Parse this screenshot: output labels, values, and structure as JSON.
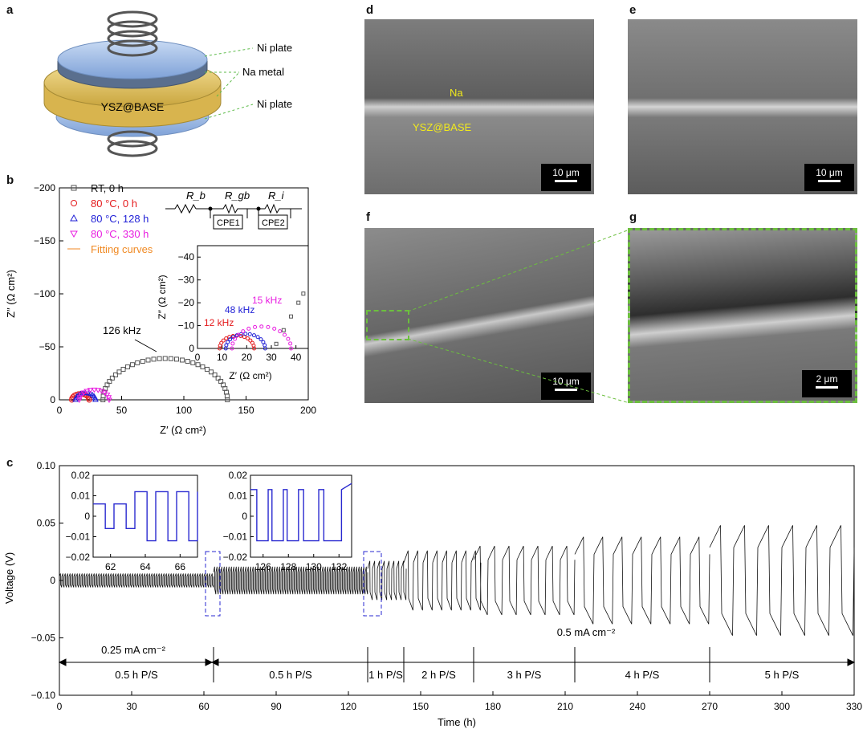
{
  "panels": {
    "a": "a",
    "b": "b",
    "c": "c",
    "d": "d",
    "e": "e",
    "f": "f",
    "g": "g"
  },
  "panel_a": {
    "labels": [
      "Ni plate",
      "Na metal",
      "Ni plate"
    ],
    "center_label": "YSZ@BASE"
  },
  "panel_b": {
    "xlabel": "Z′ (Ω cm²)",
    "ylabel": "Z″ (Ω cm²)",
    "inset_xlabel": "Z′ (Ω cm²)",
    "inset_ylabel": "Z″ (Ω cm²)",
    "annotations": [
      "126 kHz",
      "12 kHz",
      "48 kHz",
      "15 kHz"
    ],
    "circuit": [
      "R_b",
      "R_gb",
      "R_i",
      "CPE1",
      "CPE2"
    ],
    "legend": [
      {
        "label": "RT, 0 h",
        "color": "#555555",
        "marker": "square"
      },
      {
        "label": "80 °C, 0 h",
        "color": "#e41a1c",
        "marker": "circle"
      },
      {
        "label": "80 °C, 128 h",
        "color": "#1f1fd6",
        "marker": "triangle"
      },
      {
        "label": "80 °C, 330 h",
        "color": "#e81ce0",
        "marker": "down-triangle"
      },
      {
        "label": "Fitting curves",
        "color": "#f08a24",
        "marker": "line"
      }
    ]
  },
  "panel_c": {
    "xlabel": "Time (h)",
    "ylabel": "Voltage (V)",
    "current_labels": [
      "0.25 mA cm⁻²",
      "0.5 mA cm⁻²"
    ],
    "segments": [
      "0.5 h P/S",
      "0.5 h P/S",
      "1 h P/S",
      "2 h P/S",
      "3 h P/S",
      "4 h P/S",
      "5 h P/S"
    ]
  },
  "sem": {
    "d_labels": [
      "Na",
      "YSZ@BASE"
    ],
    "d_scale": "10 μm",
    "e_scale": "10 μm",
    "f_scale": "10 μm",
    "g_scale": "2 μm"
  },
  "chart_data": [
    {
      "type": "scatter",
      "panel": "b",
      "xlabel": "Z′ (Ω cm²)",
      "ylabel": "Z″ (Ω cm²)",
      "xlim": [
        0,
        200
      ],
      "ylim": [
        0,
        -200
      ],
      "xticks": [
        0,
        50,
        100,
        150,
        200
      ],
      "yticks": [
        0,
        -50,
        -100,
        -150,
        -200
      ],
      "series": [
        {
          "name": "RT, 0 h",
          "center": 85,
          "radius": 50,
          "x_end": 142,
          "tail_end_y": 0
        },
        {
          "name": "80 °C, 0 h",
          "center": 17,
          "radius": 7
        },
        {
          "name": "80 °C, 128 h",
          "center": 21,
          "radius": 8
        },
        {
          "name": "80 °C, 330 h",
          "center": 28,
          "radius": 12
        }
      ]
    },
    {
      "type": "scatter",
      "panel": "b-inset",
      "xlabel": "Z′ (Ω cm²)",
      "ylabel": "Z″ (Ω cm²)",
      "xlim": [
        0,
        45
      ],
      "ylim": [
        0,
        -45
      ],
      "xticks": [
        0,
        10,
        20,
        30,
        40
      ],
      "yticks": [
        0,
        -10,
        -20,
        -30,
        -40
      ],
      "series": [
        {
          "name": "80 °C, 0 h",
          "center": 16,
          "radius": 7
        },
        {
          "name": "80 °C, 128 h",
          "center": 19.5,
          "radius": 8
        },
        {
          "name": "80 °C, 330 h",
          "center": 26,
          "radius": 12
        },
        {
          "name": "RT, 0 h",
          "x": [
            32,
            35,
            38,
            41,
            43
          ],
          "y": [
            -2,
            -8,
            -14,
            -20,
            -24
          ]
        }
      ]
    },
    {
      "type": "line",
      "panel": "c",
      "xlabel": "Time (h)",
      "ylabel": "Voltage (V)",
      "xlim": [
        0,
        330
      ],
      "ylim": [
        -0.1,
        0.1
      ],
      "xticks": [
        0,
        30,
        60,
        90,
        120,
        150,
        180,
        210,
        240,
        270,
        300,
        330
      ],
      "yticks": [
        -0.1,
        -0.05,
        0,
        0.05,
        0.1
      ],
      "blocks": [
        {
          "t0": 0,
          "t1": 64,
          "period": 1,
          "amp": 0.006
        },
        {
          "t0": 64,
          "t1": 128,
          "period": 1,
          "amp": 0.012
        },
        {
          "t0": 128,
          "t1": 143,
          "period": 2,
          "amp": 0.017
        },
        {
          "t0": 143,
          "t1": 172,
          "period": 4,
          "amp": 0.026
        },
        {
          "t0": 172,
          "t1": 214,
          "period": 6,
          "amp": 0.03
        },
        {
          "t0": 214,
          "t1": 270,
          "period": 8,
          "amp": 0.038
        },
        {
          "t0": 270,
          "t1": 330,
          "period": 10,
          "amp": 0.048
        }
      ],
      "insets": [
        {
          "xlim": [
            61,
            67
          ],
          "ylim": [
            -0.02,
            0.02
          ],
          "xticks": [
            62,
            64,
            66
          ],
          "yticks": [
            0.02,
            0.01,
            0,
            -0.01,
            -0.02
          ]
        },
        {
          "xlim": [
            125,
            133
          ],
          "ylim": [
            -0.02,
            0.02
          ],
          "xticks": [
            126,
            128,
            130,
            132
          ],
          "yticks": [
            0.02,
            0.01,
            0,
            -0.01,
            -0.02
          ]
        }
      ]
    }
  ]
}
